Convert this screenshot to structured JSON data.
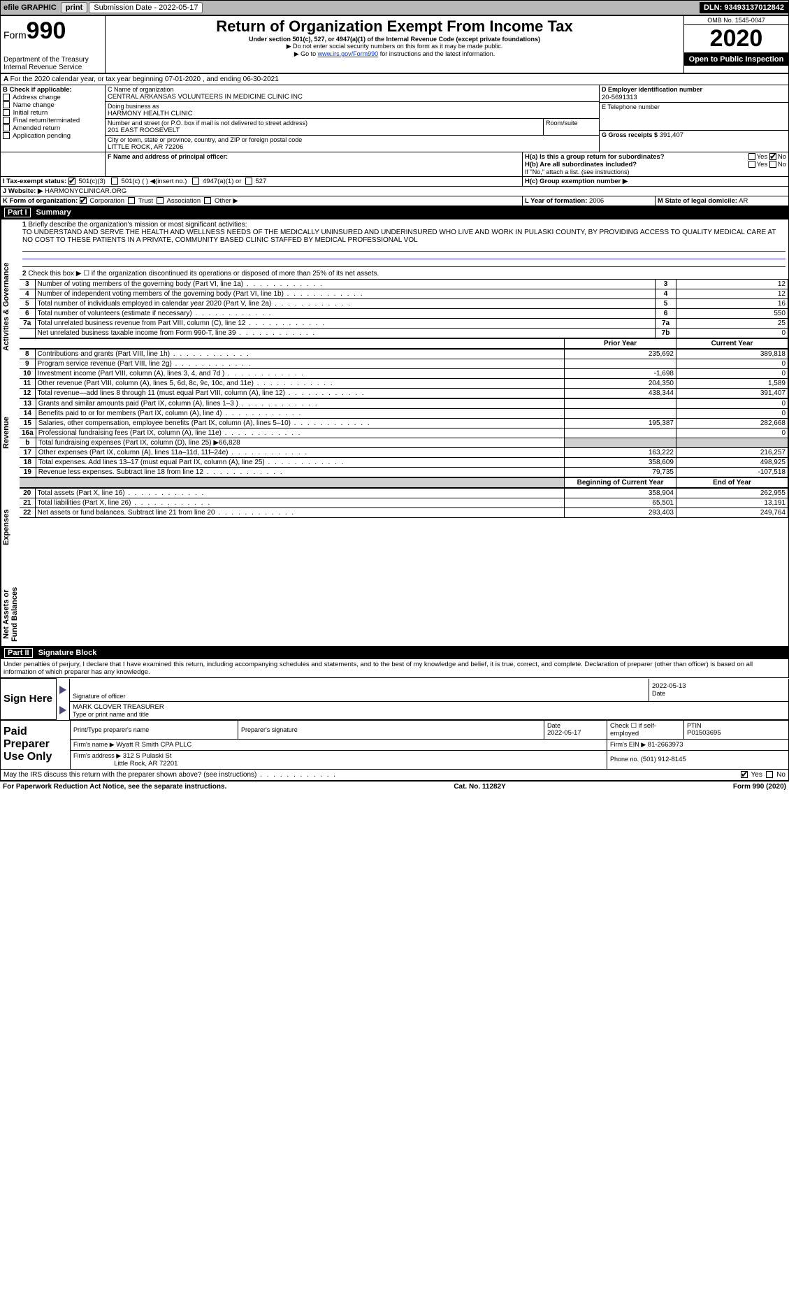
{
  "topbar": {
    "efile": "efile GRAPHIC",
    "print": "print",
    "sub_label": "Submission Date - 2022-05-17",
    "dln": "DLN: 93493137012842"
  },
  "header": {
    "form": "Form",
    "num": "990",
    "dept1": "Department of the Treasury",
    "dept2": "Internal Revenue Service",
    "title": "Return of Organization Exempt From Income Tax",
    "sub1": "Under section 501(c), 527, or 4947(a)(1) of the Internal Revenue Code (except private foundations)",
    "sub2": "▶ Do not enter social security numbers on this form as it may be made public.",
    "sub3_a": "▶ Go to ",
    "sub3_link": "www.irs.gov/Form990",
    "sub3_b": " for instructions and the latest information.",
    "omb": "OMB No. 1545-0047",
    "year": "2020",
    "open": "Open to Public Inspection"
  },
  "a_line": "For the 2020 calendar year, or tax year beginning 07-01-2020    , and ending 06-30-2021",
  "b": {
    "label": "B Check if applicable:",
    "items": [
      "Address change",
      "Name change",
      "Initial return",
      "Final return/terminated",
      "Amended return",
      "Application pending"
    ]
  },
  "c": {
    "label": "C Name of organization",
    "name": "CENTRAL ARKANSAS VOLUNTEERS IN MEDICINE CLINIC INC",
    "dba_label": "Doing business as",
    "dba": "HARMONY HEALTH CLINIC",
    "addr_label": "Number and street (or P.O. box if mail is not delivered to street address)",
    "room_label": "Room/suite",
    "addr": "201 EAST ROOSEVELT",
    "city_label": "City or town, state or province, country, and ZIP or foreign postal code",
    "city": "LITTLE ROCK, AR  72206"
  },
  "d": {
    "label": "D Employer identification number",
    "val": "20-5691313"
  },
  "e": {
    "label": "E Telephone number",
    "val": ""
  },
  "g": {
    "label": "G Gross receipts $",
    "val": "391,407"
  },
  "f": {
    "label": "F  Name and address of principal officer:",
    "val": ""
  },
  "h": {
    "a": "H(a)  Is this a group return for subordinates?",
    "b": "H(b)  Are all subordinates included?",
    "bnote": "If \"No,\" attach a list. (see instructions)",
    "c": "H(c)  Group exemption number ▶",
    "yes": "Yes",
    "no": "No"
  },
  "i": {
    "label": "I   Tax-exempt status:",
    "o1": "501(c)(3)",
    "o2": "501(c) (  ) ◀(insert no.)",
    "o3": "4947(a)(1) or",
    "o4": "527"
  },
  "j": {
    "label": "J   Website: ▶",
    "val": "HARMONYCLINICAR.ORG"
  },
  "k": {
    "label": "K Form of organization:",
    "o1": "Corporation",
    "o2": "Trust",
    "o3": "Association",
    "o4": "Other ▶"
  },
  "l": {
    "label": "L Year of formation:",
    "val": "2006"
  },
  "m": {
    "label": "M State of legal domicile:",
    "val": "AR"
  },
  "part1": {
    "num": "Part I",
    "title": "Summary"
  },
  "p1": {
    "l1": "Briefly describe the organization's mission or most significant activities:",
    "mission": "TO UNDERSTAND AND SERVE THE HEALTH AND WELLNESS NEEDS OF THE MEDICALLY UNINSURED AND UNDERINSURED WHO LIVE AND WORK IN PULASKI COUNTY, BY PROVIDING ACCESS TO QUALITY MEDICAL CARE AT NO COST TO THESE PATIENTS IN A PRIVATE, COMMUNITY BASED CLINIC STAFFED BY MEDICAL PROFESSIONAL VOL",
    "l2": "Check this box ▶ ☐ if the organization discontinued its operations or disposed of more than 25% of its net assets.",
    "rows": [
      {
        "n": "3",
        "t": "Number of voting members of the governing body (Part VI, line 1a)",
        "b": "3",
        "v": "12"
      },
      {
        "n": "4",
        "t": "Number of independent voting members of the governing body (Part VI, line 1b)",
        "b": "4",
        "v": "12"
      },
      {
        "n": "5",
        "t": "Total number of individuals employed in calendar year 2020 (Part V, line 2a)",
        "b": "5",
        "v": "16"
      },
      {
        "n": "6",
        "t": "Total number of volunteers (estimate if necessary)",
        "b": "6",
        "v": "550"
      },
      {
        "n": "7a",
        "t": "Total unrelated business revenue from Part VIII, column (C), line 12",
        "b": "7a",
        "v": "25"
      },
      {
        "n": "",
        "t": "Net unrelated business taxable income from Form 990-T, line 39",
        "b": "7b",
        "v": "0"
      }
    ],
    "py": "Prior Year",
    "cy": "Current Year",
    "rev": [
      {
        "n": "8",
        "t": "Contributions and grants (Part VIII, line 1h)",
        "p": "235,692",
        "c": "389,818"
      },
      {
        "n": "9",
        "t": "Program service revenue (Part VIII, line 2g)",
        "p": "",
        "c": "0"
      },
      {
        "n": "10",
        "t": "Investment income (Part VIII, column (A), lines 3, 4, and 7d )",
        "p": "-1,698",
        "c": "0"
      },
      {
        "n": "11",
        "t": "Other revenue (Part VIII, column (A), lines 5, 6d, 8c, 9c, 10c, and 11e)",
        "p": "204,350",
        "c": "1,589"
      },
      {
        "n": "12",
        "t": "Total revenue—add lines 8 through 11 (must equal Part VIII, column (A), line 12)",
        "p": "438,344",
        "c": "391,407"
      }
    ],
    "exp": [
      {
        "n": "13",
        "t": "Grants and similar amounts paid (Part IX, column (A), lines 1–3 )",
        "p": "",
        "c": "0"
      },
      {
        "n": "14",
        "t": "Benefits paid to or for members (Part IX, column (A), line 4)",
        "p": "",
        "c": "0"
      },
      {
        "n": "15",
        "t": "Salaries, other compensation, employee benefits (Part IX, column (A), lines 5–10)",
        "p": "195,387",
        "c": "282,668"
      },
      {
        "n": "16a",
        "t": "Professional fundraising fees (Part IX, column (A), line 11e)",
        "p": "",
        "c": "0"
      },
      {
        "n": "b",
        "t": "Total fundraising expenses (Part IX, column (D), line 25) ▶66,828",
        "p": "shade",
        "c": "shade"
      },
      {
        "n": "17",
        "t": "Other expenses (Part IX, column (A), lines 11a–11d, 11f–24e)",
        "p": "163,222",
        "c": "216,257"
      },
      {
        "n": "18",
        "t": "Total expenses. Add lines 13–17 (must equal Part IX, column (A), line 25)",
        "p": "358,609",
        "c": "498,925"
      },
      {
        "n": "19",
        "t": "Revenue less expenses. Subtract line 18 from line 12",
        "p": "79,735",
        "c": "-107,518"
      }
    ],
    "boy": "Beginning of Current Year",
    "eoy": "End of Year",
    "net": [
      {
        "n": "20",
        "t": "Total assets (Part X, line 16)",
        "p": "358,904",
        "c": "262,955"
      },
      {
        "n": "21",
        "t": "Total liabilities (Part X, line 26)",
        "p": "65,501",
        "c": "13,191"
      },
      {
        "n": "22",
        "t": "Net assets or fund balances. Subtract line 21 from line 20",
        "p": "293,403",
        "c": "249,764"
      }
    ],
    "vl1": "Activities & Governance",
    "vl2": "Revenue",
    "vl3": "Expenses",
    "vl4": "Net Assets or Fund Balances"
  },
  "part2": {
    "num": "Part II",
    "title": "Signature Block"
  },
  "sig": {
    "decl": "Under penalties of perjury, I declare that I have examined this return, including accompanying schedules and statements, and to the best of my knowledge and belief, it is true, correct, and complete. Declaration of preparer (other than officer) is based on all information of which preparer has any knowledge.",
    "date": "2022-05-13",
    "sigoff": "Signature of officer",
    "datel": "Date",
    "name": "MARK GLOVER  TREASURER",
    "namel": "Type or print name and title",
    "sh": "Sign Here",
    "pp": "Paid Preparer Use Only",
    "p_name_l": "Print/Type preparer's name",
    "p_sig_l": "Preparer's signature",
    "p_date_l": "Date",
    "p_date": "2022-05-17",
    "p_chk": "Check ☐ if self-employed",
    "ptin_l": "PTIN",
    "ptin": "P01503695",
    "firm_l": "Firm's name   ▶",
    "firm": "Wyatt R Smith CPA PLLC",
    "ein_l": "Firm's EIN ▶",
    "ein": "81-2663973",
    "addr_l": "Firm's address ▶",
    "addr": "312 S Pulaski St",
    "addr2": "Little Rock, AR  72201",
    "phone_l": "Phone no.",
    "phone": "(501) 912-8145",
    "discuss": "May the IRS discuss this return with the preparer shown above? (see instructions)",
    "yes": "Yes",
    "no": "No"
  },
  "footer": {
    "l": "For Paperwork Reduction Act Notice, see the separate instructions.",
    "m": "Cat. No. 11282Y",
    "r": "Form 990 (2020)"
  }
}
